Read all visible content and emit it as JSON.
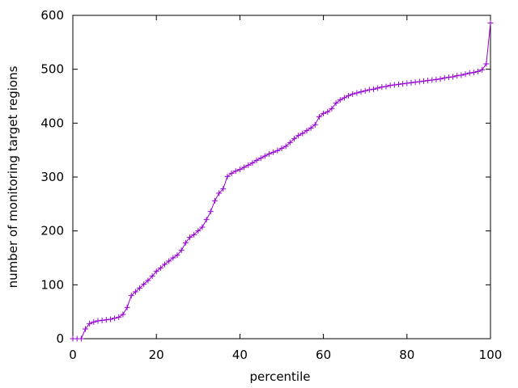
{
  "chart_data": {
    "type": "line",
    "title": "",
    "xlabel": "percentile",
    "ylabel": "number of monitoring target regions",
    "xlim": [
      0,
      100
    ],
    "ylim": [
      0,
      600
    ],
    "xticks": [
      0,
      20,
      40,
      60,
      80,
      100
    ],
    "yticks": [
      0,
      100,
      200,
      300,
      400,
      500,
      600
    ],
    "grid": false,
    "legend": "none",
    "series_color": "#9400d3",
    "marker": "plus",
    "series": [
      {
        "x": [
          0,
          1,
          2,
          3,
          4,
          5,
          6,
          7,
          8,
          9,
          10,
          11,
          12,
          13,
          14,
          15,
          16,
          17,
          18,
          19,
          20,
          21,
          22,
          23,
          24,
          25,
          26,
          27,
          28,
          29,
          30,
          31,
          32,
          33,
          34,
          35,
          36,
          37,
          38,
          39,
          40,
          41,
          42,
          43,
          44,
          45,
          46,
          47,
          48,
          49,
          50,
          51,
          52,
          53,
          54,
          55,
          56,
          57,
          58,
          59,
          60,
          61,
          62,
          63,
          64,
          65,
          66,
          67,
          68,
          69,
          70,
          71,
          72,
          73,
          74,
          75,
          76,
          77,
          78,
          79,
          80,
          81,
          82,
          83,
          84,
          85,
          86,
          87,
          88,
          89,
          90,
          91,
          92,
          93,
          94,
          95,
          96,
          97,
          98,
          99,
          100
        ],
        "values": [
          0,
          0,
          0,
          18,
          28,
          31,
          33,
          34,
          35,
          36,
          38,
          40,
          45,
          58,
          80,
          87,
          94,
          101,
          108,
          116,
          125,
          131,
          138,
          144,
          150,
          155,
          164,
          178,
          188,
          193,
          200,
          207,
          221,
          236,
          256,
          270,
          278,
          301,
          307,
          311,
          314,
          318,
          322,
          326,
          331,
          335,
          339,
          343,
          346,
          349,
          353,
          357,
          364,
          371,
          377,
          381,
          386,
          391,
          397,
          412,
          418,
          421,
          427,
          437,
          443,
          447,
          451,
          454,
          456,
          458,
          460,
          462,
          463,
          465,
          467,
          468,
          470,
          471,
          472,
          473,
          474,
          475,
          476,
          477,
          478,
          479,
          480,
          481,
          482,
          484,
          485,
          486,
          488,
          489,
          491,
          493,
          494,
          496,
          499,
          510,
          586
        ]
      }
    ]
  }
}
